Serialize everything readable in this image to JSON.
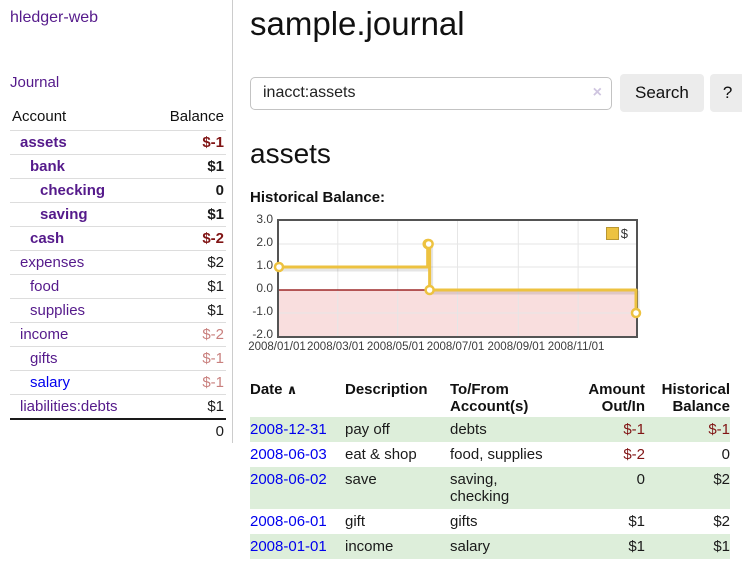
{
  "brand": "hledger-web",
  "nav": {
    "journal": "Journal"
  },
  "sidebar": {
    "col_account": "Account",
    "col_balance": "Balance",
    "accounts": [
      {
        "name": "assets",
        "balance": "$-1"
      },
      {
        "name": "bank",
        "balance": "$1"
      },
      {
        "name": "checking",
        "balance": "0"
      },
      {
        "name": "saving",
        "balance": "$1"
      },
      {
        "name": "cash",
        "balance": "$-2"
      },
      {
        "name": "expenses",
        "balance": "$2"
      },
      {
        "name": "food",
        "balance": "$1"
      },
      {
        "name": "supplies",
        "balance": "$1"
      },
      {
        "name": "income",
        "balance": "$-2"
      },
      {
        "name": "gifts",
        "balance": "$-1"
      },
      {
        "name": "salary",
        "balance": "$-1"
      },
      {
        "name": "liabilities:debts",
        "balance": "$1"
      }
    ],
    "total": "0"
  },
  "main": {
    "title": "sample.journal",
    "search": {
      "value": "inacct:assets",
      "clear_icon": "×",
      "button": "Search",
      "help": "?"
    },
    "account_title": "assets",
    "chart_caption": "Historical Balance:"
  },
  "chart_data": {
    "type": "line",
    "style": "step-after",
    "title": "Historical Balance of assets",
    "legend": "$",
    "legend_position": "top-right",
    "line_color": "#edc240",
    "x_range": [
      "2008-01-01",
      "2008-12-31"
    ],
    "ylim": [
      -2,
      3
    ],
    "grid": true,
    "negative_region_shaded": true,
    "zero_line_color": "#8b0000",
    "series": [
      {
        "name": "$",
        "points": [
          [
            "2008-01-01",
            1
          ],
          [
            "2008-06-01",
            2
          ],
          [
            "2008-06-02",
            2
          ],
          [
            "2008-06-03",
            0
          ],
          [
            "2008-12-31",
            -1
          ]
        ]
      }
    ],
    "y_ticks": [
      "3.0",
      "2.0",
      "1.0",
      "0.0",
      "-1.0",
      "-2.0"
    ],
    "x_ticks": [
      "2008/01/01",
      "2008/03/01",
      "2008/05/01",
      "2008/07/01",
      "2008/09/01",
      "2008/11/01"
    ]
  },
  "register": {
    "headers": {
      "date": "Date",
      "sort_icon": "∧",
      "description": "Description",
      "accounts": "To/From Account(s)",
      "amount": "Amount Out/In",
      "balance": "Historical Balance"
    },
    "rows": [
      {
        "date": "2008-12-31",
        "description": "pay off",
        "accounts": "debts",
        "amount": "$-1",
        "balance": "$-1"
      },
      {
        "date": "2008-06-03",
        "description": "eat & shop",
        "accounts": "food, supplies",
        "amount": "$-2",
        "balance": "0"
      },
      {
        "date": "2008-06-02",
        "description": "save",
        "accounts": "saving, checking",
        "amount": "0",
        "balance": "$2"
      },
      {
        "date": "2008-06-01",
        "description": "gift",
        "accounts": "gifts",
        "amount": "$1",
        "balance": "$2"
      },
      {
        "date": "2008-01-01",
        "description": "income",
        "accounts": "salary",
        "amount": "$1",
        "balance": "$1"
      }
    ]
  },
  "colors": {
    "link_visited": "#551a8b",
    "link_unvisited": "#0000ee",
    "negative_strong": "#801414",
    "negative_soft": "#c9807e",
    "row_stripe": "#ddeeda",
    "chart_line": "#edc240",
    "chart_negative_fill": "#f9dede",
    "chart_border": "#545454"
  }
}
